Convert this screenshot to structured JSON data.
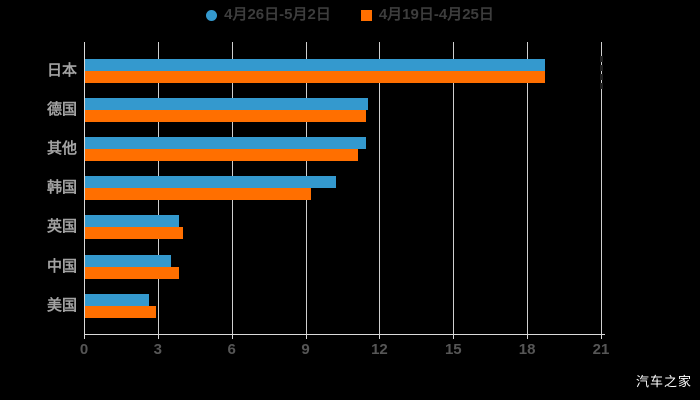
{
  "legend": {
    "items": [
      {
        "label": "4月26日-5月2日",
        "color": "#3499ce",
        "marker": "circle"
      },
      {
        "label": "4月19日-4月25日",
        "color": "#ff6f00",
        "marker": "square"
      }
    ]
  },
  "watermark": "汽车之家",
  "colors": {
    "background": "#000000",
    "series_blue": "#3499ce",
    "series_orange": "#ff6f00",
    "gridline": "#cfcfcf",
    "axis": "#dbdbdb",
    "tick_label": "#565656",
    "category_label": "#a3a3a3",
    "legend_text": "#3d3d3d"
  },
  "chart_data": {
    "type": "bar",
    "orientation": "horizontal",
    "title": "",
    "xlabel": "",
    "ylabel": "",
    "categories": [
      "日本",
      "德国",
      "其他",
      "韩国",
      "英国",
      "中国",
      "美国"
    ],
    "series": [
      {
        "name": "4月26日-5月2日",
        "color": "#3499ce",
        "values": [
          18.7,
          11.5,
          11.4,
          10.2,
          3.8,
          3.5,
          2.6
        ]
      },
      {
        "name": "4月19日-4月25日",
        "color": "#ff6f00",
        "values": [
          18.7,
          11.4,
          11.1,
          9.2,
          4.0,
          3.8,
          2.9
        ]
      }
    ],
    "x_ticks": [
      0,
      3,
      6,
      9,
      12,
      15,
      18,
      21
    ],
    "xlim": [
      0,
      21
    ],
    "grid": true,
    "legend_position": "top-center"
  }
}
